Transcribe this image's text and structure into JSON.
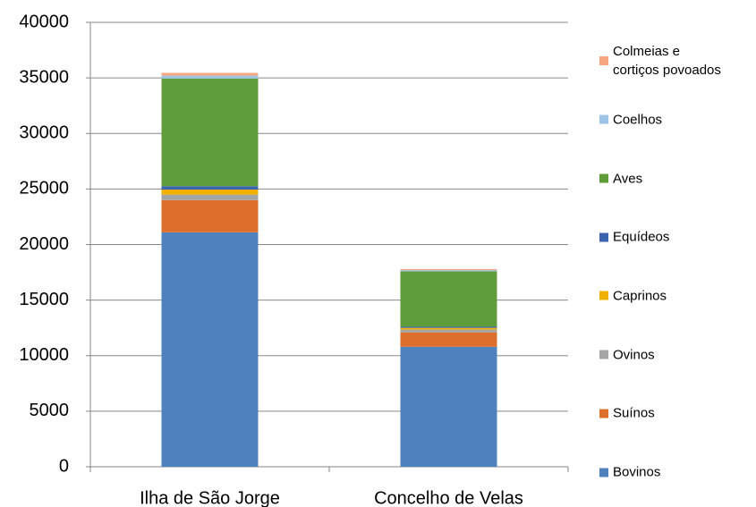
{
  "chart_data": {
    "type": "stacked_bar",
    "categories": [
      "Ilha de São Jorge",
      "Concelho de Velas"
    ],
    "series": [
      {
        "name": "Bovinos",
        "color": "#4f81bd",
        "values": [
          21100,
          10800
        ]
      },
      {
        "name": "Suínos",
        "color": "#dd6f2c",
        "values": [
          2900,
          1300
        ]
      },
      {
        "name": "Ovinos",
        "color": "#a5a5a5",
        "values": [
          500,
          250
        ]
      },
      {
        "name": "Caprinos",
        "color": "#f0b000",
        "values": [
          450,
          150
        ]
      },
      {
        "name": "Equídeos",
        "color": "#3a62ad",
        "values": [
          300,
          100
        ]
      },
      {
        "name": "Aves",
        "color": "#5f9c3a",
        "values": [
          9700,
          5000
        ]
      },
      {
        "name": "Coelhos",
        "color": "#9dc3e6",
        "values": [
          250,
          100
        ]
      },
      {
        "name": "Colmeias e cortiços povoados",
        "color": "#f4a582",
        "values": [
          250,
          100
        ]
      }
    ],
    "ylim": [
      0,
      40000
    ],
    "yticks": [
      0,
      5000,
      10000,
      15000,
      20000,
      25000,
      30000,
      35000,
      40000
    ],
    "grid": true,
    "legend": "right"
  }
}
